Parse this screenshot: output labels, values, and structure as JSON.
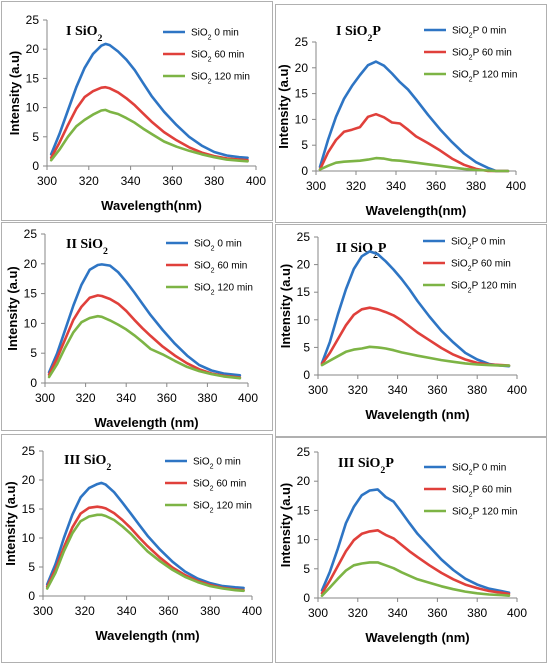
{
  "colors": {
    "series_0": "#2e75c4",
    "series_60": "#e0403b",
    "series_120": "#7db445"
  },
  "chart_data": [
    {
      "type": "line",
      "title": "I SiO₂",
      "xlabel": "Wavelength(nm)",
      "ylabel": "Intensity (a.u)",
      "xlim": [
        300,
        400
      ],
      "ylim": [
        0,
        25
      ],
      "xticks": [
        "300",
        "320",
        "340",
        "360",
        "380",
        "400"
      ],
      "yticks": [
        "0",
        "5",
        "10",
        "15",
        "20",
        "25"
      ],
      "grid": false,
      "legend_position": "top-right",
      "x": [
        302,
        306,
        310,
        314,
        318,
        322,
        326,
        328,
        330,
        334,
        338,
        342,
        346,
        350,
        356,
        362,
        368,
        374,
        380,
        386,
        392,
        396
      ],
      "series": [
        {
          "name": "SiO₂ 0 min",
          "color": "#2e75c4",
          "values": [
            2,
            5.5,
            9.5,
            13.5,
            16.8,
            19.2,
            20.6,
            20.9,
            20.7,
            19.6,
            18.2,
            16.4,
            14.2,
            12.0,
            9.3,
            7.0,
            5.0,
            3.5,
            2.4,
            1.8,
            1.5,
            1.4
          ]
        },
        {
          "name": "SiO₂ 60 min",
          "color": "#e0403b",
          "values": [
            1.4,
            4.0,
            7.0,
            9.8,
            11.8,
            12.8,
            13.4,
            13.5,
            13.3,
            12.6,
            11.6,
            10.4,
            9.0,
            7.6,
            5.8,
            4.4,
            3.2,
            2.3,
            1.7,
            1.3,
            1.1,
            1.0
          ]
        },
        {
          "name": "SiO₂ 120 min",
          "color": "#7db445",
          "values": [
            1.0,
            2.8,
            5.0,
            6.8,
            7.9,
            8.8,
            9.5,
            9.6,
            9.3,
            8.9,
            8.2,
            7.4,
            6.4,
            5.5,
            4.2,
            3.3,
            2.6,
            2.0,
            1.5,
            1.1,
            0.9,
            0.8
          ]
        }
      ]
    },
    {
      "type": "line",
      "title": "I SiO₂P",
      "xlabel": "Wavelength(nm)",
      "ylabel": "Intensity (a.u)",
      "xlim": [
        300,
        400
      ],
      "ylim": [
        0,
        25
      ],
      "xticks": [
        "300",
        "320",
        "340",
        "360",
        "380",
        "400"
      ],
      "yticks": [
        "0",
        "5",
        "10",
        "15",
        "20",
        "25"
      ],
      "grid": false,
      "legend_position": "top-right",
      "x": [
        302,
        306,
        310,
        314,
        318,
        322,
        326,
        330,
        334,
        338,
        342,
        346,
        350,
        356,
        362,
        368,
        374,
        380,
        386,
        390,
        396
      ],
      "series": [
        {
          "name": "SiO₂P 0 min",
          "color": "#2e75c4",
          "values": [
            0.8,
            6.0,
            10.5,
            14.0,
            16.5,
            18.6,
            20.5,
            21.2,
            20.4,
            18.9,
            17.2,
            15.8,
            13.9,
            10.9,
            8.1,
            5.6,
            3.4,
            1.7,
            0.6,
            0,
            0
          ]
        },
        {
          "name": "SiO₂P 60 min",
          "color": "#e0403b",
          "values": [
            0.3,
            3.6,
            6.0,
            7.6,
            8.0,
            8.5,
            10.5,
            11.0,
            10.4,
            9.4,
            9.2,
            8.0,
            6.7,
            5.4,
            4.0,
            2.4,
            1.2,
            0.4,
            0,
            0,
            0
          ]
        },
        {
          "name": "SiO₂P 120 min",
          "color": "#7db445",
          "values": [
            0.3,
            1.0,
            1.6,
            1.8,
            1.9,
            2.0,
            2.2,
            2.5,
            2.4,
            2.1,
            2.0,
            1.8,
            1.6,
            1.3,
            1.0,
            0.7,
            0.4,
            0.2,
            0.1,
            0,
            0
          ]
        }
      ]
    },
    {
      "type": "line",
      "title": "II SiO₂",
      "xlabel": "Wavelength (nm)",
      "ylabel": "Intensity (a.u)",
      "xlim": [
        300,
        400
      ],
      "ylim": [
        0,
        25
      ],
      "xticks": [
        "300",
        "320",
        "340",
        "360",
        "380",
        "400"
      ],
      "yticks": [
        "0",
        "5",
        "10",
        "15",
        "20",
        "25"
      ],
      "grid": false,
      "legend_position": "top-right",
      "x": [
        302,
        306,
        310,
        314,
        318,
        322,
        326,
        328,
        332,
        336,
        340,
        344,
        348,
        352,
        358,
        364,
        370,
        376,
        382,
        388,
        396
      ],
      "series": [
        {
          "name": "SiO₂ 0 min",
          "color": "#2e75c4",
          "values": [
            1.8,
            5.0,
            9.0,
            13.0,
            16.5,
            19.0,
            19.8,
            19.9,
            19.7,
            18.6,
            17.0,
            15.2,
            13.3,
            11.4,
            8.9,
            6.6,
            4.6,
            3.0,
            2.1,
            1.6,
            1.3
          ]
        },
        {
          "name": "SiO₂ 60 min",
          "color": "#e0403b",
          "values": [
            1.4,
            4.2,
            7.4,
            10.6,
            12.8,
            14.3,
            14.7,
            14.6,
            14.1,
            13.3,
            12.1,
            10.6,
            9.2,
            7.9,
            6.1,
            4.6,
            3.3,
            2.3,
            1.6,
            1.2,
            0.9
          ]
        },
        {
          "name": "SiO₂ 120 min",
          "color": "#7db445",
          "values": [
            1.0,
            3.2,
            6.0,
            8.5,
            10.2,
            10.9,
            11.2,
            11.1,
            10.5,
            9.8,
            9.0,
            8.0,
            6.9,
            5.7,
            4.8,
            3.7,
            2.7,
            2.0,
            1.5,
            1.1,
            0.8
          ]
        }
      ]
    },
    {
      "type": "line",
      "title": "II SiO₂P",
      "xlabel": "Wavelength (nm)",
      "ylabel": "Intensity (a.u)",
      "xlim": [
        300,
        400
      ],
      "ylim": [
        0,
        25
      ],
      "xticks": [
        "300",
        "320",
        "340",
        "360",
        "380",
        "400"
      ],
      "yticks": [
        "0",
        "5",
        "10",
        "15",
        "20",
        "25"
      ],
      "grid": false,
      "legend_position": "top-right",
      "x": [
        302,
        306,
        310,
        314,
        318,
        322,
        326,
        330,
        334,
        338,
        342,
        346,
        350,
        356,
        362,
        368,
        374,
        380,
        386,
        392,
        396
      ],
      "series": [
        {
          "name": "SiO₂P 0 min",
          "color": "#2e75c4",
          "values": [
            2.2,
            6.0,
            11.0,
            15.5,
            19.2,
            21.5,
            22.4,
            21.9,
            20.6,
            19.1,
            17.4,
            15.5,
            13.4,
            10.6,
            8.0,
            5.9,
            4.0,
            2.8,
            2.0,
            1.7,
            1.6
          ]
        },
        {
          "name": "SiO₂P 60 min",
          "color": "#e0403b",
          "values": [
            2.0,
            4.0,
            6.5,
            9.0,
            10.9,
            11.9,
            12.2,
            11.9,
            11.4,
            10.8,
            9.9,
            8.8,
            7.7,
            6.3,
            4.9,
            3.7,
            2.8,
            2.2,
            1.9,
            1.8,
            1.7
          ]
        },
        {
          "name": "SiO₂P 120 min",
          "color": "#7db445",
          "values": [
            1.8,
            2.6,
            3.4,
            4.2,
            4.6,
            4.8,
            5.1,
            5.0,
            4.8,
            4.5,
            4.1,
            3.8,
            3.5,
            3.1,
            2.7,
            2.4,
            2.1,
            1.9,
            1.8,
            1.7,
            1.7
          ]
        }
      ]
    },
    {
      "type": "line",
      "title": "III SiO₂",
      "xlabel": "Wavelength (nm)",
      "ylabel": "Intensity (a.u)",
      "xlim": [
        300,
        400
      ],
      "ylim": [
        0,
        25
      ],
      "xticks": [
        "300",
        "320",
        "340",
        "360",
        "380",
        "400"
      ],
      "yticks": [
        "0",
        "5",
        "10",
        "15",
        "20",
        "25"
      ],
      "grid": false,
      "legend_position": "top-right",
      "x": [
        302,
        306,
        310,
        314,
        318,
        322,
        326,
        328,
        330,
        334,
        338,
        342,
        346,
        350,
        356,
        362,
        368,
        374,
        380,
        386,
        392,
        396
      ],
      "series": [
        {
          "name": "SiO₂ 0 min",
          "color": "#2e75c4",
          "values": [
            2.0,
            5.5,
            10.0,
            14.0,
            17.0,
            18.6,
            19.3,
            19.5,
            19.2,
            17.9,
            16.1,
            14.2,
            12.3,
            10.4,
            8.0,
            5.9,
            4.2,
            3.0,
            2.2,
            1.7,
            1.5,
            1.4
          ]
        },
        {
          "name": "SiO₂ 60 min",
          "color": "#e0403b",
          "values": [
            1.6,
            4.6,
            8.4,
            11.8,
            14.2,
            15.2,
            15.4,
            15.3,
            15.1,
            14.3,
            13.1,
            11.7,
            10.1,
            8.6,
            6.6,
            4.9,
            3.6,
            2.6,
            1.9,
            1.4,
            1.1,
            1.0
          ]
        },
        {
          "name": "SiO₂ 120 min",
          "color": "#7db445",
          "values": [
            1.3,
            4.0,
            7.7,
            10.8,
            12.9,
            13.7,
            14.0,
            14.0,
            13.8,
            13.1,
            12.0,
            10.7,
            9.2,
            7.7,
            6.0,
            4.5,
            3.3,
            2.4,
            1.7,
            1.3,
            1.0,
            0.9
          ]
        }
      ]
    },
    {
      "type": "line",
      "title": "III SiO₂P",
      "xlabel": "Wavelength (nm)",
      "ylabel": "Intensity (a.u)",
      "xlim": [
        300,
        400
      ],
      "ylim": [
        0,
        25
      ],
      "xticks": [
        "300",
        "320",
        "340",
        "360",
        "380",
        "400"
      ],
      "yticks": [
        "0",
        "5",
        "10",
        "15",
        "20",
        "25"
      ],
      "grid": false,
      "legend_position": "top-right",
      "x": [
        302,
        306,
        310,
        314,
        318,
        322,
        326,
        330,
        334,
        338,
        342,
        346,
        350,
        356,
        362,
        368,
        374,
        380,
        386,
        392,
        396
      ],
      "series": [
        {
          "name": "SiO₂P 0 min",
          "color": "#2e75c4",
          "values": [
            1.3,
            4.5,
            8.5,
            12.8,
            15.6,
            17.6,
            18.4,
            18.6,
            17.3,
            16.5,
            14.7,
            12.8,
            11.0,
            8.8,
            6.6,
            4.8,
            3.3,
            2.3,
            1.6,
            1.2,
            0.9
          ]
        },
        {
          "name": "SiO₂P 60 min",
          "color": "#e0403b",
          "values": [
            0.8,
            3.0,
            5.5,
            8.0,
            9.9,
            11.0,
            11.4,
            11.6,
            10.8,
            10.2,
            9.1,
            8.0,
            7.0,
            5.6,
            4.3,
            3.2,
            2.3,
            1.7,
            1.2,
            0.9,
            0.7
          ]
        },
        {
          "name": "SiO₂P 120 min",
          "color": "#7db445",
          "values": [
            0.4,
            1.8,
            3.3,
            4.7,
            5.6,
            5.9,
            6.1,
            6.1,
            5.6,
            5.1,
            4.4,
            3.8,
            3.2,
            2.6,
            2.0,
            1.5,
            1.1,
            0.8,
            0.6,
            0.5,
            0.4
          ]
        }
      ]
    }
  ]
}
